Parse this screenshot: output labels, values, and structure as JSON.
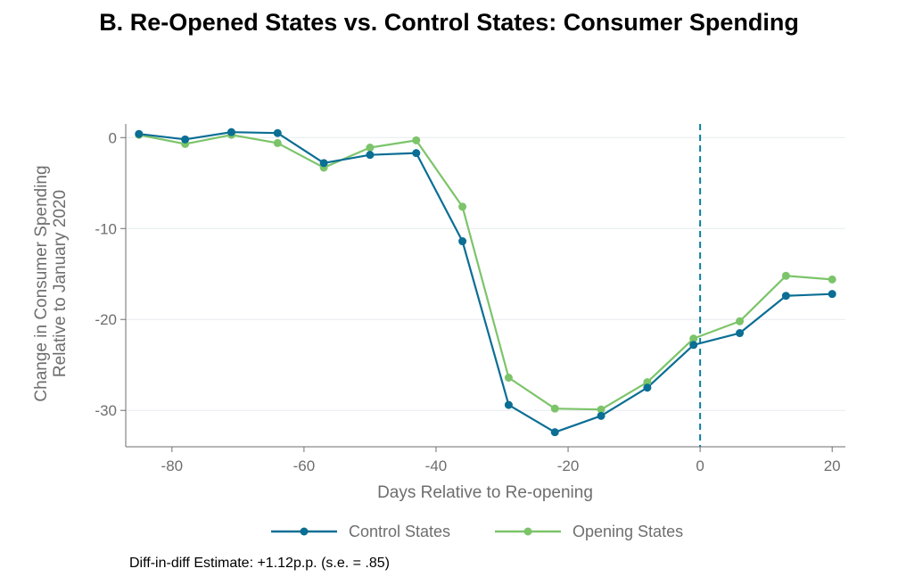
{
  "chart_data": {
    "type": "line",
    "title": "B. Re-Opened States vs. Control States: Consumer Spending",
    "xlabel": "Days Relative to Re-opening",
    "ylabel_line1": "Change in Consumer Spending",
    "ylabel_line2": "Relative to January 2020",
    "xlim": [
      -87,
      22
    ],
    "ylim": [
      -34,
      1.5
    ],
    "xticks": [
      -80,
      -60,
      -40,
      -20,
      0,
      20
    ],
    "yticks": [
      0,
      -10,
      -20,
      -30
    ],
    "grid": true,
    "vline_x": 0,
    "legend_position": "bottom",
    "series": [
      {
        "name": "Control States",
        "color": "#0b6e94",
        "x": [
          -85,
          -78,
          -71,
          -64,
          -57,
          -50,
          -43,
          -36,
          -29,
          -22,
          -15,
          -8,
          -1,
          6,
          13,
          20
        ],
        "y": [
          0.4,
          -0.2,
          0.6,
          0.5,
          -2.8,
          -1.9,
          -1.7,
          -11.4,
          -29.4,
          -32.4,
          -30.6,
          -27.5,
          -22.8,
          -21.5,
          -17.4,
          -17.2
        ]
      },
      {
        "name": "Opening States",
        "color": "#7cc46a",
        "x": [
          -85,
          -78,
          -71,
          -64,
          -57,
          -50,
          -43,
          -36,
          -29,
          -22,
          -15,
          -8,
          -1,
          6,
          13,
          20
        ],
        "y": [
          0.3,
          -0.7,
          0.3,
          -0.6,
          -3.3,
          -1.1,
          -0.3,
          -7.6,
          -26.4,
          -29.8,
          -29.9,
          -26.9,
          -22.1,
          -20.2,
          -15.2,
          -15.6
        ]
      }
    ]
  },
  "note": "Diff-in-diff Estimate: +1.12p.p. (s.e. = .85)"
}
